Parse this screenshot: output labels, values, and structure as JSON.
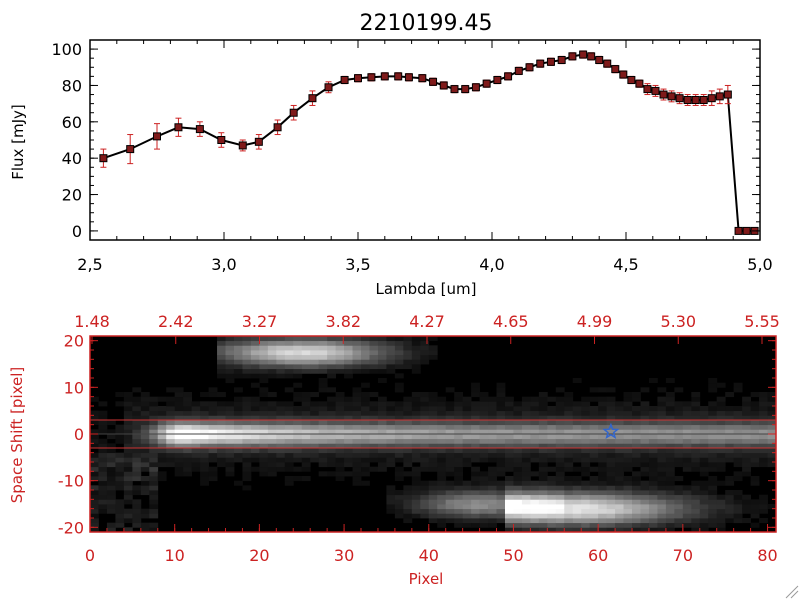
{
  "chart_data": [
    {
      "type": "line",
      "title": "2210199.45",
      "xlabel": "Lambda [um]",
      "ylabel": "Flux [mJy]",
      "xlim": [
        2.5,
        5.0
      ],
      "ylim": [
        -5,
        105
      ],
      "xticks": [
        "2.5",
        "3.0",
        "3.5",
        "4.0",
        "4.5",
        "5.0"
      ],
      "yticks": [
        "0",
        "20",
        "40",
        "60",
        "80",
        "100"
      ],
      "colors": {
        "line": "#000000",
        "marker": "#7f1a1a",
        "errorbar": "#cc2222"
      },
      "series": [
        {
          "name": "flux",
          "x": [
            2.55,
            2.65,
            2.75,
            2.83,
            2.91,
            2.99,
            3.07,
            3.13,
            3.2,
            3.26,
            3.33,
            3.39,
            3.45,
            3.5,
            3.55,
            3.6,
            3.65,
            3.69,
            3.74,
            3.78,
            3.82,
            3.86,
            3.9,
            3.94,
            3.98,
            4.02,
            4.06,
            4.1,
            4.14,
            4.18,
            4.22,
            4.26,
            4.3,
            4.34,
            4.37,
            4.4,
            4.43,
            4.46,
            4.49,
            4.52,
            4.55,
            4.58,
            4.61,
            4.64,
            4.67,
            4.7,
            4.73,
            4.76,
            4.79,
            4.82,
            4.85,
            4.88,
            4.92,
            4.95,
            4.98
          ],
          "y": [
            40,
            45,
            52,
            57,
            56,
            50,
            47,
            49,
            57,
            65,
            73,
            79,
            83,
            84,
            84.5,
            85,
            85,
            84.5,
            84,
            82,
            80,
            78,
            78,
            79,
            81,
            83,
            85,
            88,
            90,
            92,
            93,
            94,
            96,
            97,
            96,
            94,
            92,
            89,
            86,
            83,
            81,
            78,
            77,
            75,
            74,
            73,
            72,
            72,
            72,
            73,
            74,
            75,
            0,
            0,
            0
          ],
          "err": [
            5,
            8,
            7,
            5,
            4,
            4,
            3,
            4,
            4,
            4,
            4,
            3,
            2,
            2,
            2,
            2,
            2,
            2,
            2,
            2,
            2,
            2,
            2,
            2,
            2,
            2,
            2,
            2,
            2,
            2,
            2,
            2,
            2,
            2,
            2,
            2,
            2,
            2,
            2,
            2,
            2,
            3,
            3,
            3,
            3,
            3,
            3,
            3,
            3,
            4,
            4,
            5,
            0,
            0,
            0
          ]
        }
      ]
    },
    {
      "type": "heatmap",
      "xlabel": "Pixel",
      "ylabel": "Space Shift [pixel]",
      "xlim": [
        0,
        81
      ],
      "ylim": [
        -21,
        21
      ],
      "xticks": [
        "0",
        "10",
        "20",
        "30",
        "40",
        "50",
        "60",
        "70",
        "80"
      ],
      "yticks": [
        "-20",
        "-10",
        "0",
        "10",
        "20"
      ],
      "top_axis_ticks": [
        "1.48",
        "2.42",
        "3.27",
        "3.82",
        "4.27",
        "4.65",
        "4.99",
        "5.30",
        "5.55"
      ],
      "colors": {
        "axis": "#cc2222",
        "star": "#3366cc",
        "band": "#cc3333"
      },
      "extraction_band": [
        -3,
        3
      ],
      "star_marker": {
        "x": 61.5,
        "y": 0.5
      },
      "sources": [
        {
          "name": "main-trace",
          "center_y": 0,
          "half_width": 2.5,
          "x_range": [
            8,
            81
          ],
          "peak_x": 11,
          "peak": 1.0
        },
        {
          "name": "upper-blob",
          "center_y": 17.5,
          "half_width": 3,
          "x_range": [
            18,
            40
          ],
          "peak_x": 25,
          "peak": 0.85
        },
        {
          "name": "lower-blob-left",
          "center_y": -15,
          "half_width": 3,
          "x_range": [
            38,
            55
          ],
          "peak_x": 46,
          "peak": 0.55
        },
        {
          "name": "lower-blob-right",
          "center_y": -16,
          "half_width": 3.5,
          "x_range": [
            52,
            81
          ],
          "peak_x": 57,
          "peak": 0.9
        }
      ]
    }
  ]
}
